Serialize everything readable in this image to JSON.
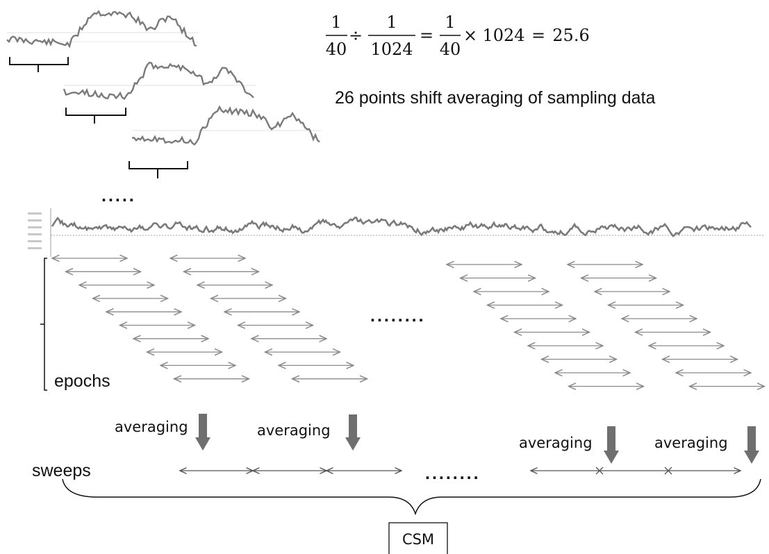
{
  "equation": {
    "frac1_num": "1",
    "frac1_den": "40",
    "div_sign": "÷",
    "frac2_num": "1",
    "frac2_den": "1024",
    "eq_sign": "=",
    "frac3_num": "1",
    "frac3_den": "40",
    "times_sign": "×",
    "factor": "1024",
    "eq_sign2": "=",
    "result": "25.6"
  },
  "caption": "26 points shift averaging of sampling data",
  "epochs_label": "epochs",
  "sweeps_label": "sweeps",
  "averaging_labels": [
    "averaging",
    "averaging",
    "averaging",
    "averaging"
  ],
  "csm_label": "CSM",
  "ellipsis": ".....",
  "ellipsis_long": "........",
  "colors": {
    "signal": "#7a7a7a",
    "arrow": "#8a8a8a",
    "bigArrow": "#6f6f6f",
    "ink": "#111111"
  },
  "icons": [
    "double-headed-arrow",
    "down-arrow",
    "curly-brace"
  ]
}
